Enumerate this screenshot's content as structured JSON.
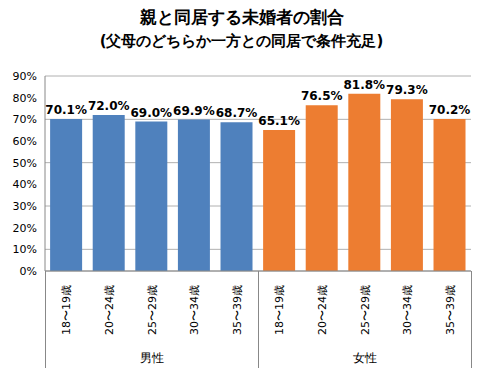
{
  "chart_data": {
    "type": "bar",
    "title": "親と同居する未婚者の割合",
    "subtitle": "(父母のどちらか一方との同居で条件充足)",
    "groups": [
      {
        "name": "男性",
        "color": "#4f81bd",
        "categories": [
          "18〜19歳",
          "20〜24歳",
          "25〜29歳",
          "30〜34歳",
          "35〜39歳"
        ],
        "values": [
          70.1,
          72.0,
          69.0,
          69.9,
          68.7
        ],
        "value_labels": [
          "70.1%",
          "72.0%",
          "69.0%",
          "69.9%",
          "68.7%"
        ]
      },
      {
        "name": "女性",
        "color": "#ed7d31",
        "categories": [
          "18〜19歳",
          "20〜24歳",
          "25〜29歳",
          "30〜34歳",
          "35〜39歳"
        ],
        "values": [
          65.1,
          76.5,
          81.8,
          79.3,
          70.2
        ],
        "value_labels": [
          "65.1%",
          "76.5%",
          "81.8%",
          "79.3%",
          "70.2%"
        ]
      }
    ],
    "ylim": [
      0,
      90
    ],
    "yticks": [
      {
        "value": 0,
        "label": "0%"
      },
      {
        "value": 10,
        "label": "10%"
      },
      {
        "value": 20,
        "label": "20%"
      },
      {
        "value": 30,
        "label": "30%"
      },
      {
        "value": 40,
        "label": "40%"
      },
      {
        "value": 50,
        "label": "50%"
      },
      {
        "value": 60,
        "label": "60%"
      },
      {
        "value": 70,
        "label": "70%"
      },
      {
        "value": 80,
        "label": "80%"
      },
      {
        "value": 90,
        "label": "90%"
      }
    ],
    "grid": true,
    "data_labels": true
  }
}
